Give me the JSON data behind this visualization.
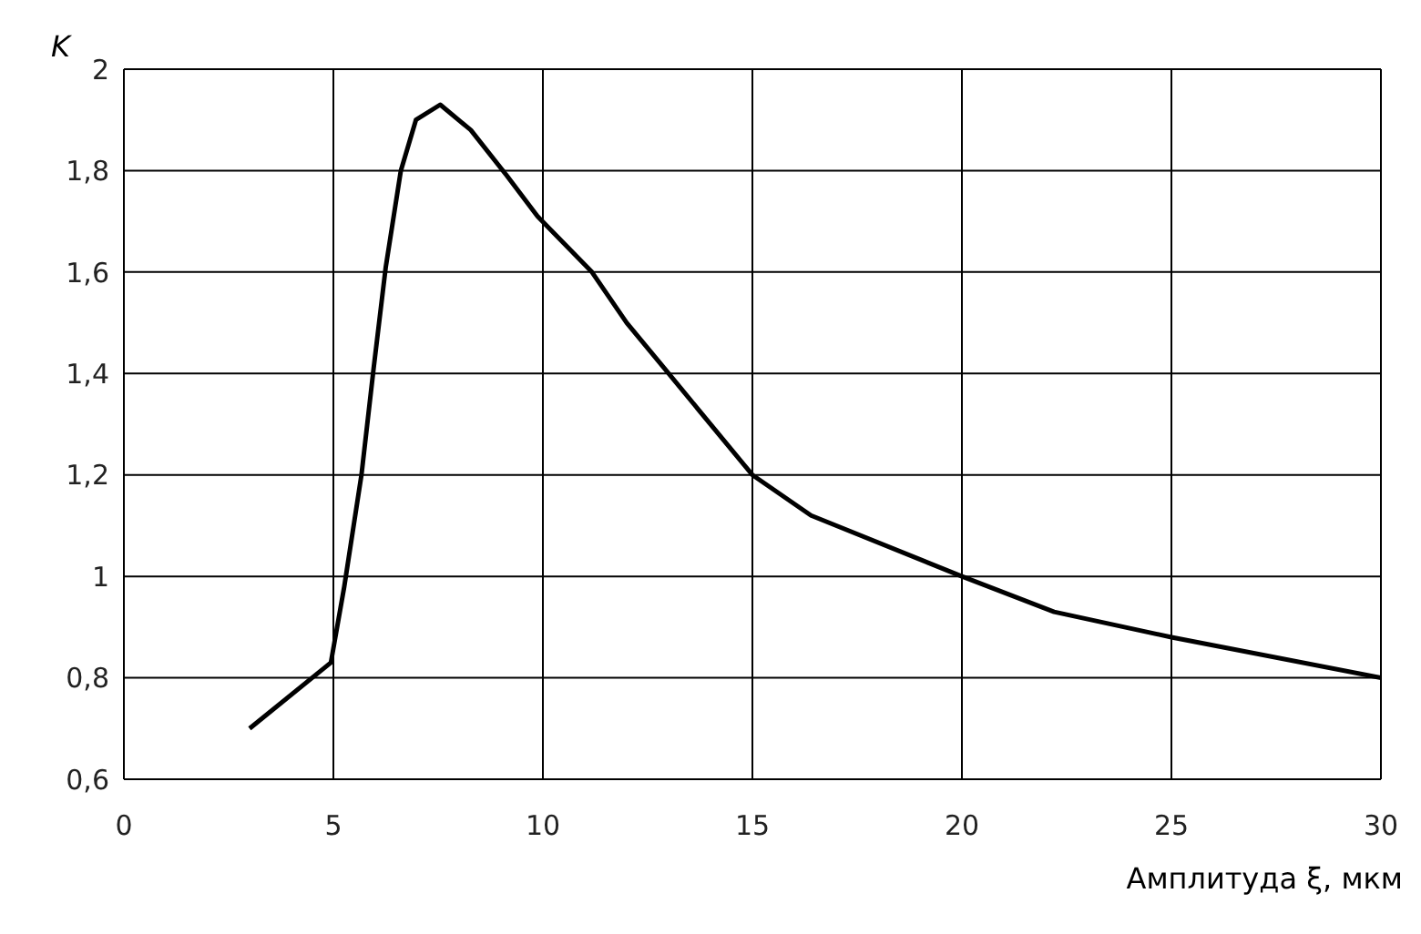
{
  "chart_data": {
    "type": "line",
    "ylabel": "K",
    "xlabel": "Амплитуда ξ, мкм",
    "x": [
      3,
      4.94,
      5.26,
      5.67,
      5.96,
      6.25,
      6.61,
      6.97,
      7.55,
      8.28,
      9.14,
      9.87,
      11.17,
      12,
      12.9,
      15,
      16.4,
      20,
      22.2,
      25,
      30
    ],
    "series": [
      {
        "color": "#000000",
        "values": [
          0.7,
          0.83,
          0.98,
          1.2,
          1.41,
          1.61,
          1.8,
          1.9,
          1.93,
          1.88,
          1.79,
          1.71,
          1.6,
          1.5,
          1.41,
          1.2,
          1.12,
          1.0,
          0.93,
          0.88,
          0.8
        ]
      }
    ],
    "xlim": [
      0,
      30
    ],
    "xticks": [
      0,
      5,
      10,
      15,
      20,
      25,
      30
    ],
    "ylim": [
      0.6,
      2
    ],
    "yticks": [
      {
        "value": 0.6,
        "label": "0,6"
      },
      {
        "value": 0.8,
        "label": "0,8"
      },
      1,
      {
        "value": 1.2,
        "label": "1,2"
      },
      {
        "value": 1.4,
        "label": "1,4"
      },
      {
        "value": 1.6,
        "label": "1,6"
      },
      {
        "value": 1.8,
        "label": "1,8"
      },
      2
    ],
    "grid": true,
    "marker": "none",
    "line_style": "solid"
  }
}
